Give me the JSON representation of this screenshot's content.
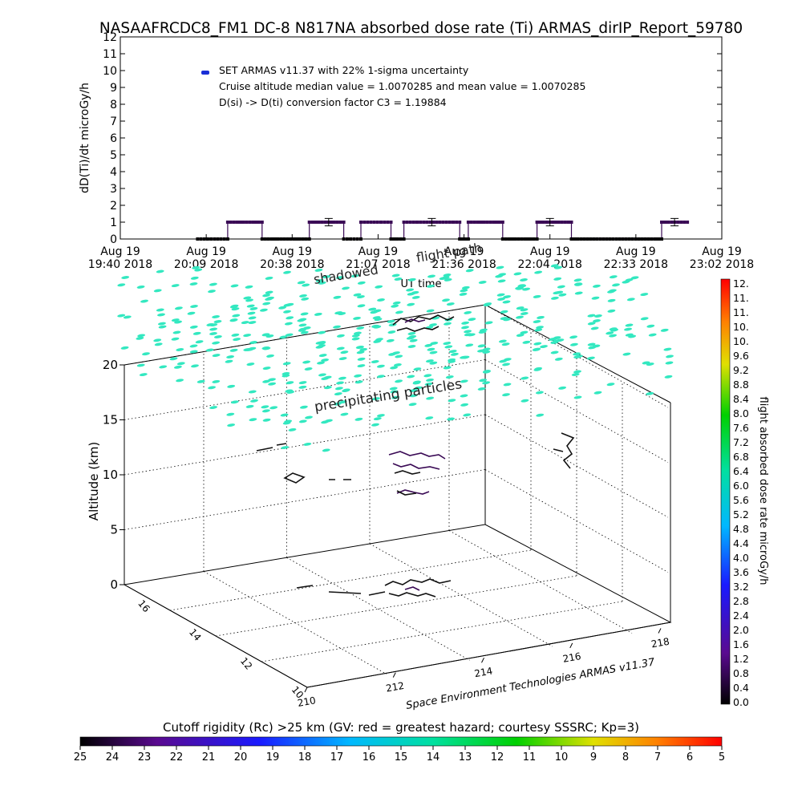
{
  "title": "NASAAFRCDC8_FM1 DC-8    N817NA absorbed dose rate (Ti) ARMAS_dirIP_Report_59780",
  "chart_data": [
    {
      "type": "line",
      "ylabel": "dD(Ti)/dt microGy/h",
      "xlabel": "UT time",
      "ylim": [
        0,
        12
      ],
      "yticks": [
        "0",
        "1",
        "2",
        "3",
        "4",
        "5",
        "6",
        "7",
        "8",
        "9",
        "10",
        "11",
        "12"
      ],
      "xticks": [
        {
          "day": "Aug 19",
          "time": "19:40 2018"
        },
        {
          "day": "Aug 19",
          "time": "20:09 2018"
        },
        {
          "day": "Aug 19",
          "time": "20:38 2018"
        },
        {
          "day": "Aug 19",
          "time": "21:07 2018"
        },
        {
          "day": "Aug 19",
          "time": "21:36 2018"
        },
        {
          "day": "Aug 19",
          "time": "22:04 2018"
        },
        {
          "day": "Aug 19",
          "time": "22:33 2018"
        },
        {
          "day": "Aug 19",
          "time": "23:02 2018"
        }
      ],
      "legend": "SET ARMAS v11.37 with 22% 1-sigma uncertainty",
      "legend_color": "#1a2fd6",
      "annotations": [
        "Cruise altitude median value = 1.0070285 and mean value = 1.0070285",
        "D(si) -> D(ti) conversion factor C3 = 1.19884"
      ],
      "series_color": "#3a0a55",
      "segments": [
        {
          "start": 0.18,
          "end": 0.25,
          "value": 0
        },
        {
          "start": 0.25,
          "end": 0.33,
          "value": 1
        },
        {
          "start": 0.33,
          "end": 0.44,
          "value": 0
        },
        {
          "start": 0.44,
          "end": 0.52,
          "value": 1
        },
        {
          "start": 0.52,
          "end": 0.56,
          "value": 0
        },
        {
          "start": 0.56,
          "end": 0.63,
          "value": 1
        },
        {
          "start": 0.63,
          "end": 0.66,
          "value": 0
        },
        {
          "start": 0.66,
          "end": 0.79,
          "value": 1
        },
        {
          "start": 0.79,
          "end": 0.81,
          "value": 0
        },
        {
          "start": 0.81,
          "end": 0.89,
          "value": 1
        },
        {
          "start": 0.89,
          "end": 0.97,
          "value": 0
        },
        {
          "start": 0.97,
          "end": 1.05,
          "value": 1
        },
        {
          "start": 1.05,
          "end": 1.26,
          "value": 0
        },
        {
          "start": 1.26,
          "end": 1.32,
          "value": 1
        }
      ],
      "error_bars": [
        {
          "x": 0.485,
          "value": 1.0,
          "err": 0.22
        },
        {
          "x": 0.725,
          "value": 1.0,
          "err": 0.22
        },
        {
          "x": 1.0,
          "value": 1.0,
          "err": 0.22
        },
        {
          "x": 1.29,
          "value": 1.0,
          "err": 0.22
        }
      ],
      "x_range": [
        0,
        1.4
      ]
    },
    {
      "type": "scatter",
      "ylabel": "Altitude (km)",
      "yticks": [
        "0",
        "5",
        "10",
        "15",
        "20"
      ],
      "depth_ticks": [
        "16",
        "14",
        "12",
        "10"
      ],
      "x_ticks": [
        "210",
        "212",
        "214",
        "216",
        "218"
      ],
      "text_labels": {
        "precipitating": "precipitating particles",
        "shadowed": "shadowed",
        "flight_path": "flight path",
        "credit": "Space Environment Technologies ARMAS v11.37"
      },
      "particle_color": "#33e8c0"
    }
  ],
  "colorbar_right": {
    "label": "flight absorbed dose rate microGy/h",
    "ticks": [
      "12.",
      "11.",
      "11.",
      "10.",
      "10.",
      "9.6",
      "9.2",
      "8.8",
      "8.4",
      "8.0",
      "7.6",
      "7.2",
      "6.8",
      "6.4",
      "6.0",
      "5.6",
      "5.2",
      "4.8",
      "4.4",
      "4.0",
      "3.6",
      "3.2",
      "2.8",
      "2.4",
      "2.0",
      "1.6",
      "1.2",
      "0.8",
      "0.4",
      "0.0"
    ]
  },
  "colorbar_bottom": {
    "label": "Cutoff rigidity (Rc) >25 km (GV: red = greatest hazard; courtesy SSSRC; Kp=3)",
    "ticks": [
      "25",
      "24",
      "23",
      "22",
      "21",
      "20",
      "19",
      "18",
      "17",
      "16",
      "15",
      "14",
      "13",
      "12",
      "11",
      "10",
      "9",
      "8",
      "7",
      "6",
      "5"
    ]
  }
}
